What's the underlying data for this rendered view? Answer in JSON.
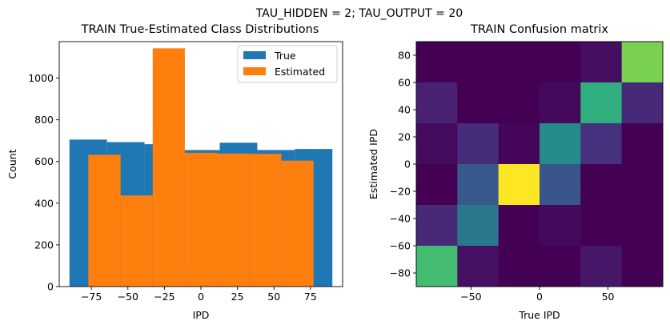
{
  "suptitle": "TAU_HIDDEN = 2; TAU_OUTPUT = 20",
  "colors": {
    "true_series": "#1f77b4",
    "estimated_series": "#ff7f0e"
  },
  "chart_data": [
    {
      "type": "bar",
      "title": "TRAIN True-Estimated Class Distributions",
      "xlabel": "IPD",
      "ylabel": "Count",
      "xlim": [
        -97,
        97
      ],
      "ylim": [
        0,
        1175
      ],
      "xticks": [
        -75,
        -50,
        -25,
        0,
        25,
        50,
        75
      ],
      "xtick_labels": [
        "−75",
        "−50",
        "−25",
        "0",
        "25",
        "50",
        "75"
      ],
      "yticks": [
        0,
        200,
        400,
        600,
        800,
        1000
      ],
      "ytick_labels": [
        "0",
        "200",
        "400",
        "600",
        "800",
        "1000"
      ],
      "legend_position": "top-right",
      "series": [
        {
          "name": "True",
          "bins": [
            {
              "x0": -90,
              "x1": -64.3,
              "value": 705
            },
            {
              "x0": -64.3,
              "x1": -38.6,
              "value": 693
            },
            {
              "x0": -38.6,
              "x1": -12.9,
              "value": 683
            },
            {
              "x0": -12.9,
              "x1": 12.9,
              "value": 655
            },
            {
              "x0": 12.9,
              "x1": 38.6,
              "value": 690
            },
            {
              "x0": 38.6,
              "x1": 64.3,
              "value": 655
            },
            {
              "x0": 64.3,
              "x1": 90,
              "value": 660
            }
          ]
        },
        {
          "name": "Estimated",
          "bins": [
            {
              "x0": -77.1,
              "x1": -55.0,
              "value": 632
            },
            {
              "x0": -55.0,
              "x1": -33.0,
              "value": 437
            },
            {
              "x0": -33.0,
              "x1": -11.0,
              "value": 1143
            },
            {
              "x0": -11.0,
              "x1": 11.0,
              "value": 642
            },
            {
              "x0": 11.0,
              "x1": 33.0,
              "value": 638
            },
            {
              "x0": 33.0,
              "x1": 55.0,
              "value": 637
            },
            {
              "x0": 55.0,
              "x1": 77.1,
              "value": 604
            }
          ]
        }
      ]
    },
    {
      "type": "heatmap",
      "title": "TRAIN Confusion matrix",
      "xlabel": "True IPD",
      "ylabel": "Estimated IPD",
      "xlim": [
        -90,
        90
      ],
      "ylim": [
        -90,
        90
      ],
      "xticks": [
        -50,
        0,
        50
      ],
      "xtick_labels": [
        "−50",
        "0",
        "50"
      ],
      "yticks": [
        -80,
        -60,
        -40,
        -20,
        0,
        20,
        40,
        60,
        80
      ],
      "ytick_labels": [
        "−80",
        "−60",
        "−40",
        "−20",
        "0",
        "20",
        "40",
        "60",
        "80"
      ],
      "true_bins": [
        -77.1,
        -51.4,
        -25.7,
        0,
        25.7,
        51.4,
        77.1
      ],
      "estimated_bins": [
        -77.1,
        -51.4,
        -25.7,
        0,
        25.7,
        51.4,
        77.1
      ],
      "colormap": "viridis",
      "values_top_to_bottom": [
        [
          0.0,
          0.0,
          0.0,
          0.0,
          0.05,
          0.85
        ],
        [
          0.12,
          0.0,
          0.0,
          0.03,
          0.72,
          0.15
        ],
        [
          0.04,
          0.16,
          0.02,
          0.6,
          0.18,
          0.0
        ],
        [
          0.0,
          0.35,
          1.0,
          0.33,
          0.0,
          0.0
        ],
        [
          0.15,
          0.5,
          0.0,
          0.03,
          0.0,
          0.0
        ],
        [
          0.77,
          0.06,
          0.0,
          0.0,
          0.08,
          0.0
        ]
      ]
    }
  ]
}
